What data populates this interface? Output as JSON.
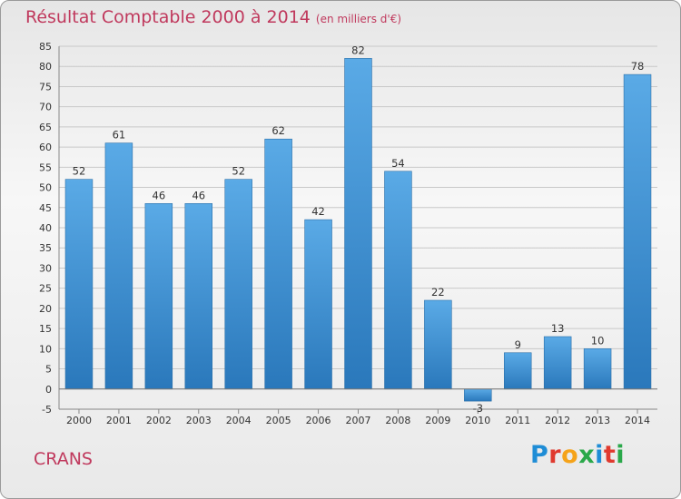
{
  "chart_data": {
    "type": "bar",
    "title": "Résultat Comptable 2000 à 2014",
    "subtitle": "(en milliers d'€)",
    "categories": [
      "2000",
      "2001",
      "2002",
      "2003",
      "2004",
      "2005",
      "2006",
      "2007",
      "2008",
      "2009",
      "2010",
      "2011",
      "2012",
      "2013",
      "2014"
    ],
    "values": [
      52,
      61,
      46,
      46,
      52,
      62,
      42,
      82,
      54,
      22,
      -3,
      9,
      13,
      10,
      78
    ],
    "value_labels": [
      "52",
      "61",
      "46",
      "46",
      "52",
      "62",
      "42",
      "82",
      "54",
      "22",
      "-3",
      "9",
      "13",
      "10",
      "78"
    ],
    "ylim": [
      -5,
      85
    ],
    "yticks": [
      -5,
      0,
      5,
      10,
      15,
      20,
      25,
      30,
      35,
      40,
      45,
      50,
      55,
      60,
      65,
      70,
      75,
      80,
      85
    ],
    "grid": true,
    "bar_color": "#3d8fd1"
  },
  "footer": {
    "commune": "CRANS"
  },
  "logo": {
    "letters": [
      "P",
      "r",
      "o",
      "x",
      "i",
      "t",
      "i"
    ],
    "colors": [
      "#1f8dd6",
      "#e03a2f",
      "#f5a31a",
      "#2aa84a",
      "#1f8dd6",
      "#e03a2f",
      "#2aa84a"
    ]
  }
}
